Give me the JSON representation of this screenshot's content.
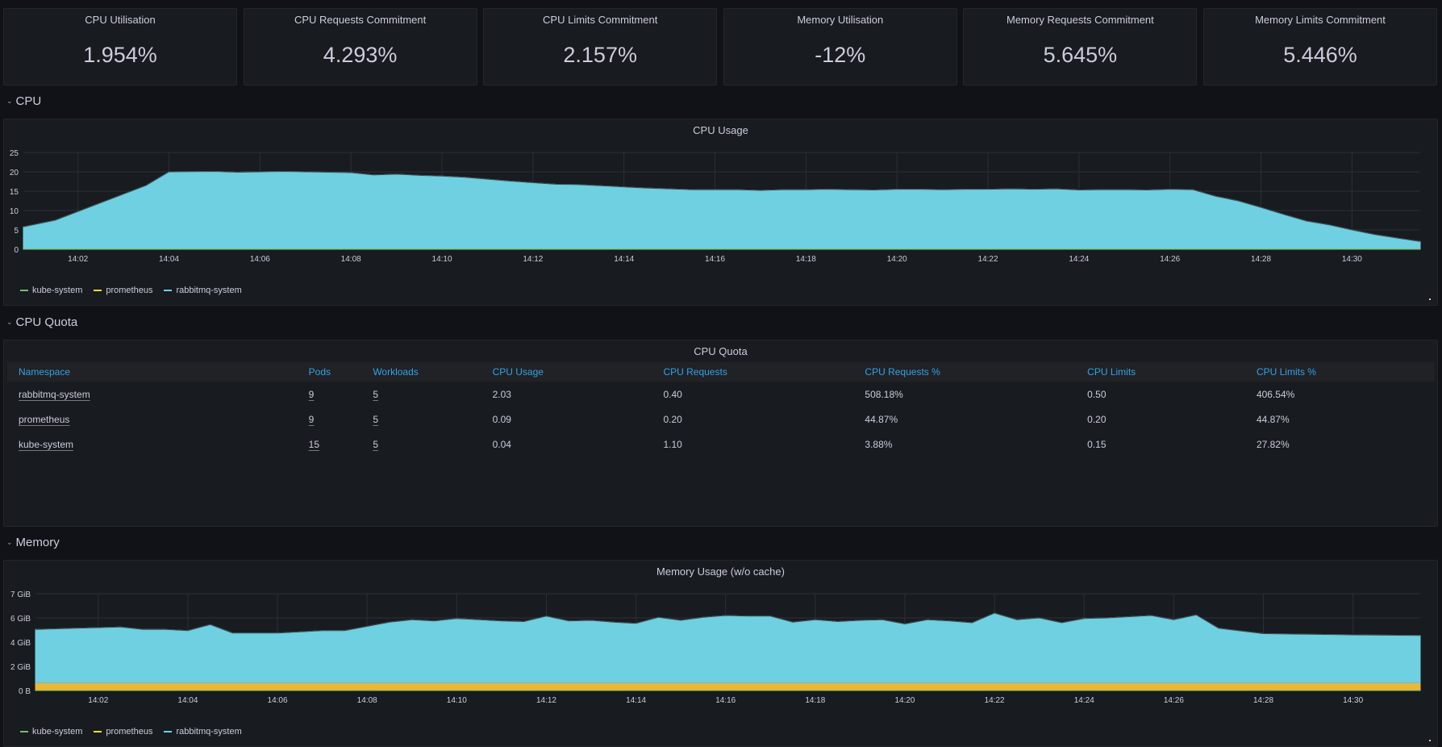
{
  "stats": [
    {
      "title": "CPU Utilisation",
      "value": "1.954%"
    },
    {
      "title": "CPU Requests Commitment",
      "value": "4.293%"
    },
    {
      "title": "CPU Limits Commitment",
      "value": "2.157%"
    },
    {
      "title": "Memory Utilisation",
      "value": "-12%"
    },
    {
      "title": "Memory Requests Commitment",
      "value": "5.645%"
    },
    {
      "title": "Memory Limits Commitment",
      "value": "5.446%"
    }
  ],
  "rows": {
    "cpu": "CPU",
    "cpu_quota": "CPU Quota",
    "memory": "Memory"
  },
  "legend": [
    {
      "name": "kube-system",
      "color": "#73bf69"
    },
    {
      "name": "prometheus",
      "color": "#fade2a"
    },
    {
      "name": "rabbitmq-system",
      "color": "#6ed0e0"
    }
  ],
  "quota_table": {
    "title": "CPU Quota",
    "columns": [
      "Namespace",
      "Pods",
      "Workloads",
      "CPU Usage",
      "CPU Requests",
      "CPU Requests %",
      "CPU Limits",
      "CPU Limits %"
    ],
    "rows": [
      [
        "rabbitmq-system",
        "9",
        "5",
        "2.03",
        "0.40",
        "508.18%",
        "0.50",
        "406.54%"
      ],
      [
        "prometheus",
        "9",
        "5",
        "0.09",
        "0.20",
        "44.87%",
        "0.20",
        "44.87%"
      ],
      [
        "kube-system",
        "15",
        "5",
        "0.04",
        "1.10",
        "3.88%",
        "0.15",
        "27.82%"
      ]
    ]
  },
  "chart_data": [
    {
      "type": "area",
      "title": "CPU Usage",
      "x_ticks": [
        "14:02",
        "14:04",
        "14:06",
        "14:08",
        "14:10",
        "14:12",
        "14:14",
        "14:16",
        "14:18",
        "14:20",
        "14:22",
        "14:24",
        "14:26",
        "14:28",
        "14:30"
      ],
      "y_ticks": [
        "0",
        "5",
        "10",
        "15",
        "20",
        "25"
      ],
      "ylim": [
        0,
        25
      ],
      "x_range_minutes": [
        0.8,
        31.5
      ],
      "series": [
        {
          "name": "rabbitmq-system",
          "color": "#6ed0e0",
          "x": [
            0.8,
            1.5,
            2.5,
            3.5,
            4.0,
            5.0,
            5.5,
            6.5,
            7.0,
            7.5,
            8.0,
            8.5,
            9.0,
            9.5,
            10.0,
            10.5,
            11.0,
            11.5,
            12.0,
            12.5,
            13.0,
            13.5,
            14.0,
            14.5,
            15.0,
            15.5,
            16.0,
            16.5,
            17.0,
            17.5,
            18.0,
            18.5,
            19.0,
            19.5,
            20.0,
            20.5,
            21.0,
            21.5,
            22.0,
            22.5,
            23.0,
            23.5,
            24.0,
            24.5,
            25.0,
            25.5,
            26.0,
            26.5,
            27.0,
            27.5,
            28.0,
            28.5,
            29.0,
            29.5,
            30.0,
            30.5,
            31.0,
            31.5
          ],
          "values": [
            5.8,
            7.5,
            12,
            16.5,
            20,
            20.1,
            19.9,
            20.1,
            20.0,
            19.9,
            19.8,
            19.2,
            19.4,
            19.1,
            18.9,
            18.6,
            18.1,
            17.6,
            17.2,
            16.8,
            16.7,
            16.4,
            16.1,
            15.8,
            15.6,
            15.4,
            15.4,
            15.4,
            15.2,
            15.4,
            15.4,
            15.5,
            15.4,
            15.3,
            15.5,
            15.5,
            15.4,
            15.5,
            15.5,
            15.6,
            15.5,
            15.6,
            15.3,
            15.4,
            15.4,
            15.3,
            15.5,
            15.4,
            13.7,
            12.5,
            10.8,
            9.0,
            7.3,
            6.3,
            5.0,
            3.8,
            2.9,
            2.0
          ]
        },
        {
          "name": "prometheus",
          "color": "#fade2a",
          "values": []
        },
        {
          "name": "kube-system",
          "color": "#73bf69",
          "values": []
        }
      ]
    },
    {
      "type": "area",
      "title": "Memory Usage (w/o cache)",
      "x_ticks": [
        "14:02",
        "14:04",
        "14:06",
        "14:08",
        "14:10",
        "14:12",
        "14:14",
        "14:16",
        "14:18",
        "14:20",
        "14:22",
        "14:24",
        "14:26",
        "14:28",
        "14:30"
      ],
      "y_ticks": [
        "0 B",
        "2 GiB",
        "4 GiB",
        "6 GiB",
        "7 GiB"
      ],
      "ylim_gib": [
        0,
        8
      ],
      "stacked": true,
      "x_range_minutes": [
        0.6,
        31.5
      ],
      "series": [
        {
          "name": "prometheus",
          "color": "#eab839",
          "x": [
            0.6,
            31.5
          ],
          "values_gib": [
            0.65,
            0.65
          ]
        },
        {
          "name": "rabbitmq-system",
          "color": "#6ed0e0",
          "x": [
            0.6,
            1.5,
            2.5,
            3.0,
            3.5,
            4.0,
            4.5,
            5.0,
            6.0,
            7.0,
            7.5,
            8.5,
            9.0,
            9.5,
            10.0,
            10.5,
            11.0,
            11.5,
            12.0,
            12.5,
            13.0,
            13.5,
            14.0,
            14.5,
            15.0,
            15.5,
            16.0,
            16.5,
            17.0,
            17.5,
            18.0,
            18.5,
            19.0,
            19.5,
            20.0,
            20.5,
            21.0,
            21.5,
            22.0,
            22.5,
            23.0,
            23.5,
            24.0,
            24.5,
            25.0,
            25.5,
            26.0,
            26.5,
            27.0,
            28.0,
            29.0,
            30.0,
            31.5
          ],
          "values_gib": [
            4.4,
            4.5,
            4.6,
            4.4,
            4.4,
            4.3,
            4.8,
            4.1,
            4.1,
            4.3,
            4.3,
            5.0,
            5.2,
            5.1,
            5.3,
            5.2,
            5.1,
            5.05,
            5.5,
            5.1,
            5.15,
            5.0,
            4.9,
            5.4,
            5.15,
            5.4,
            5.55,
            5.5,
            5.5,
            5.0,
            5.2,
            5.05,
            5.15,
            5.2,
            4.85,
            5.2,
            5.1,
            4.95,
            5.75,
            5.2,
            5.35,
            4.95,
            5.3,
            5.35,
            5.45,
            5.55,
            5.2,
            5.6,
            4.5,
            4.05,
            4.0,
            3.95,
            3.9
          ]
        },
        {
          "name": "kube-system",
          "color": "#73bf69",
          "values_gib": []
        }
      ]
    }
  ]
}
